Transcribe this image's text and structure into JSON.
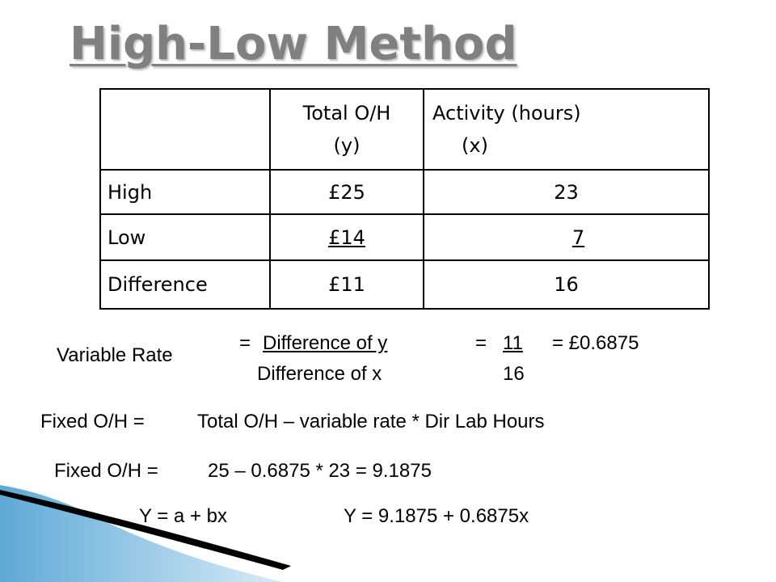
{
  "header": {
    "title": "High-Low Method"
  },
  "table": {
    "header": [
      [
        "Total O/H",
        "(y)"
      ],
      [
        "Activity (hours)",
        "(x)"
      ]
    ],
    "rows": [
      [
        "High",
        "£25",
        "23"
      ],
      [
        "Low",
        "£14",
        "7"
      ],
      [
        "Difference",
        "£11",
        "16"
      ]
    ]
  },
  "variable_rate": {
    "label": "Variable Rate",
    "eq1": "=",
    "numerator": "Difference of y",
    "denominator": "Difference of x",
    "eq2": "=",
    "num_value": "11",
    "den_value": "16",
    "result": "= £0.6875"
  },
  "fixed_formula": {
    "label": "Fixed O/H =",
    "expression": "Total O/H – variable rate * Dir Lab Hours"
  },
  "fixed_calc": {
    "label": "Fixed O/H =",
    "expression": "25 – 0.6875 * 23 = 9.1875"
  },
  "equations": [
    "Y = a + bx",
    "Y = 9.1875 + 0.6875x"
  ]
}
